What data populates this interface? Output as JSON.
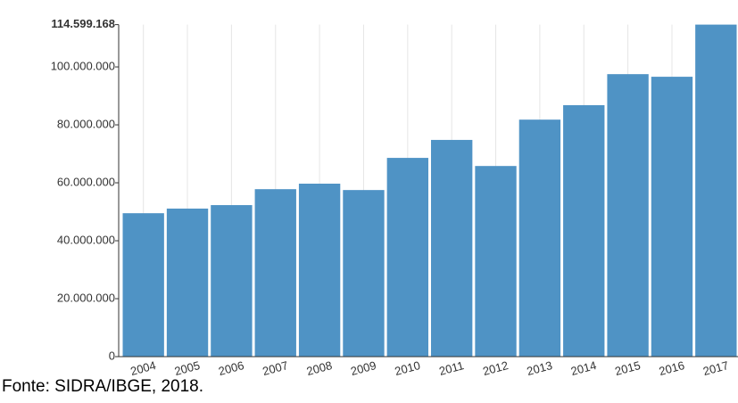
{
  "chart_data": {
    "type": "bar",
    "categories": [
      "2004",
      "2005",
      "2006",
      "2007",
      "2008",
      "2009",
      "2010",
      "2011",
      "2012",
      "2013",
      "2014",
      "2015",
      "2016",
      "2017"
    ],
    "values": [
      49500000,
      51100000,
      52300000,
      57800000,
      59700000,
      57500000,
      68600000,
      74800000,
      65800000,
      81800000,
      86800000,
      97500000,
      96600000,
      114599168
    ],
    "color": "#4f93c5",
    "ylim": [
      0,
      114599168
    ],
    "yticks": [
      0,
      {
        "value": 20000000,
        "label": "20.000.000"
      },
      {
        "value": 40000000,
        "label": "40.000.000"
      },
      {
        "value": 60000000,
        "label": "60.000.000"
      },
      {
        "value": 80000000,
        "label": "80.000.000"
      },
      {
        "value": 100000000,
        "label": "100.000.000"
      },
      {
        "value": 114599168,
        "label": "114.599.168"
      }
    ],
    "grid": true,
    "source": "Fonte: SIDRA/IBGE, 2018."
  }
}
